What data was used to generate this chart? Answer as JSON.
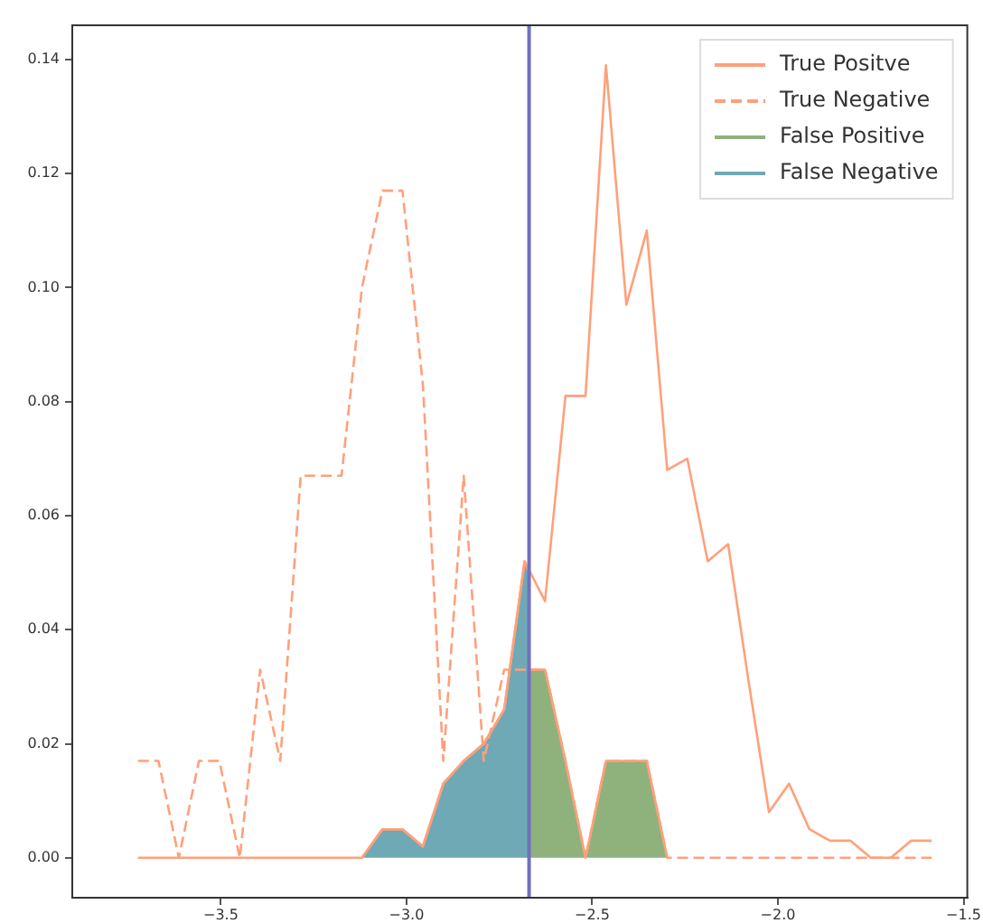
{
  "chart_data": {
    "type": "line",
    "legend": "top right",
    "grid": false,
    "marker": "none",
    "xlim": [
      -3.9,
      -1.49
    ],
    "ylim": [
      -0.007,
      0.146
    ],
    "xticks": [
      {
        "value": -3.5,
        "label": "−3.5"
      },
      {
        "value": -3,
        "label": "−3.0"
      },
      {
        "value": -2.5,
        "label": "−2.5"
      },
      {
        "value": -2,
        "label": "−2.0"
      },
      {
        "value": -1.5,
        "label": "−1.5"
      }
    ],
    "yticks": [
      {
        "value": 0,
        "label": "0.00"
      },
      {
        "value": 0.02,
        "label": "0.02"
      },
      {
        "value": 0.04,
        "label": "0.04"
      },
      {
        "value": 0.06,
        "label": "0.06"
      },
      {
        "value": 0.08,
        "label": "0.08"
      },
      {
        "value": 0.1,
        "label": "0.10"
      },
      {
        "value": 0.12,
        "label": "0.12"
      },
      {
        "value": 0.14,
        "label": "0.14"
      }
    ],
    "x": [
      -3.723,
      -3.668,
      -3.613,
      -3.559,
      -3.504,
      -3.449,
      -3.394,
      -3.34,
      -3.285,
      -3.23,
      -3.175,
      -3.12,
      -3.065,
      -3.011,
      -2.956,
      -2.901,
      -2.846,
      -2.792,
      -2.737,
      -2.682,
      -2.627,
      -2.572,
      -2.518,
      -2.463,
      -2.408,
      -2.353,
      -2.298,
      -2.244,
      -2.189,
      -2.134,
      -2.079,
      -2.024,
      -1.97,
      -1.915,
      -1.86,
      -1.805,
      -1.75,
      -1.696,
      -1.641,
      -1.586
    ],
    "series": [
      {
        "name": "True Positve",
        "color": "#ffa07a",
        "line_style": "solid",
        "values": [
          0,
          0,
          0,
          0,
          0,
          0,
          0,
          0,
          0,
          0,
          0,
          0,
          0.005,
          0.005,
          0.002,
          0.013,
          0.017,
          0.02,
          0.026,
          0.052,
          0.045,
          0.081,
          0.081,
          0.139,
          0.097,
          0.11,
          0.068,
          0.07,
          0.052,
          0.055,
          0.031,
          0.008,
          0.013,
          0.005,
          0.003,
          0.003,
          0,
          0,
          0.003,
          0.003
        ]
      },
      {
        "name": "True Negative",
        "color": "#ffa07a",
        "line_style": "dashed",
        "values": [
          0.017,
          0.017,
          0,
          0.017,
          0.017,
          0,
          0.033,
          0.017,
          0.067,
          0.067,
          0.067,
          0.1,
          0.117,
          0.117,
          0.083,
          0.017,
          0.067,
          0.017,
          0.033,
          0.033,
          0.033,
          0.017,
          0,
          0.017,
          0.017,
          0.017,
          0,
          0,
          0,
          0,
          0,
          0,
          0,
          0,
          0,
          0,
          0,
          0,
          0,
          0
        ]
      },
      {
        "name": "False Positive",
        "type": "area",
        "color": "#8fb27d",
        "x": [
          -2.67,
          -2.627,
          -2.572,
          -2.518,
          -2.463,
          -2.408,
          -2.353,
          -2.298
        ],
        "values": [
          0.033,
          0.033,
          0.017,
          0,
          0.017,
          0.017,
          0.017,
          0
        ]
      },
      {
        "name": "False Negative",
        "type": "area",
        "color": "#6fa9b6",
        "x": [
          -3.12,
          -3.065,
          -3.011,
          -2.956,
          -2.901,
          -2.846,
          -2.792,
          -2.737,
          -2.682,
          -2.67
        ],
        "values": [
          0,
          0.005,
          0.005,
          0.002,
          0.013,
          0.017,
          0.02,
          0.026,
          0.052,
          0.05
        ]
      }
    ],
    "ref_lines": [
      {
        "axis": "x",
        "value": -2.67,
        "color": "#7070c0",
        "line_style": "solid"
      }
    ]
  }
}
